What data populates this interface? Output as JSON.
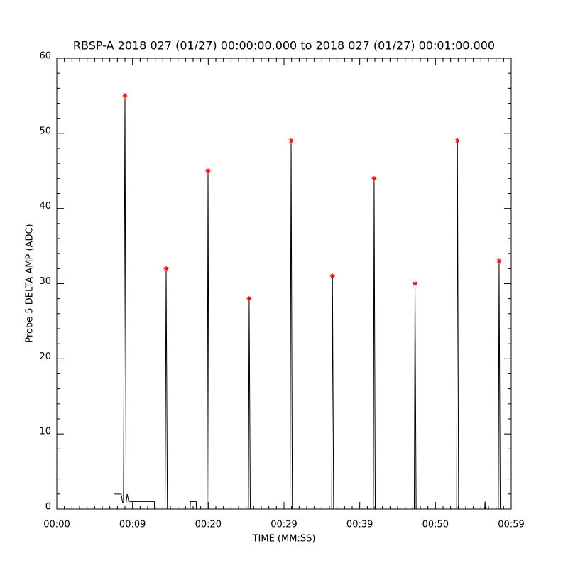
{
  "chart_data": {
    "type": "line",
    "title": "RBSP-A 2018 027 (01/27) 00:00:00.000 to 2018 027 (01/27) 00:01:00.000",
    "x_label": "TIME (MM:SS)",
    "y_label": "Probe 5 DELTA AMP (ADC)",
    "xlim": [
      0,
      60
    ],
    "ylim": [
      0,
      60
    ],
    "xticks": [
      {
        "value": 0,
        "label": "00:00"
      },
      {
        "value": 10,
        "label": "00:09"
      },
      {
        "value": 20,
        "label": "00:20"
      },
      {
        "value": 30,
        "label": "00:29"
      },
      {
        "value": 40,
        "label": "00:39"
      },
      {
        "value": 50,
        "label": "00:50"
      },
      {
        "value": 60,
        "label": "00:59"
      }
    ],
    "yticks": [
      0,
      10,
      20,
      30,
      40,
      50,
      60
    ],
    "series": [
      {
        "color": "#000000",
        "x": [
          7.6,
          8.5,
          8.7,
          8.8,
          9.0,
          9.15,
          9.3,
          9.5,
          9.7,
          12.9,
          12.9,
          14.3,
          14.44,
          14.6,
          17.6,
          17.65,
          18.4,
          18.45,
          19.85,
          19.97,
          20.1,
          25.3,
          25.4,
          25.55,
          30.8,
          30.94,
          31.1,
          36.3,
          36.4,
          36.55,
          41.8,
          41.9,
          42.05,
          47.2,
          47.3,
          47.45,
          52.8,
          52.9,
          53.05,
          56.5,
          56.55,
          56.6,
          58.3,
          58.4,
          58.55
        ],
        "values": [
          2,
          2,
          0.8,
          0.8,
          55,
          0.8,
          2,
          1,
          1,
          1,
          0,
          0,
          32,
          0,
          0,
          1,
          1,
          0,
          0,
          45,
          0,
          0,
          28,
          0,
          0,
          49,
          0,
          0,
          31,
          0,
          0,
          44,
          0,
          0,
          30,
          0,
          0,
          49,
          0,
          0,
          1,
          0,
          0,
          33,
          0
        ]
      },
      {
        "color": "#ff0000",
        "marker": "asterisk",
        "x": [
          9.0,
          14.44,
          19.97,
          25.4,
          30.94,
          36.4,
          41.9,
          47.3,
          52.9,
          58.4
        ],
        "values": [
          55,
          32,
          45,
          28,
          49,
          31,
          44,
          30,
          49,
          33
        ]
      }
    ]
  }
}
